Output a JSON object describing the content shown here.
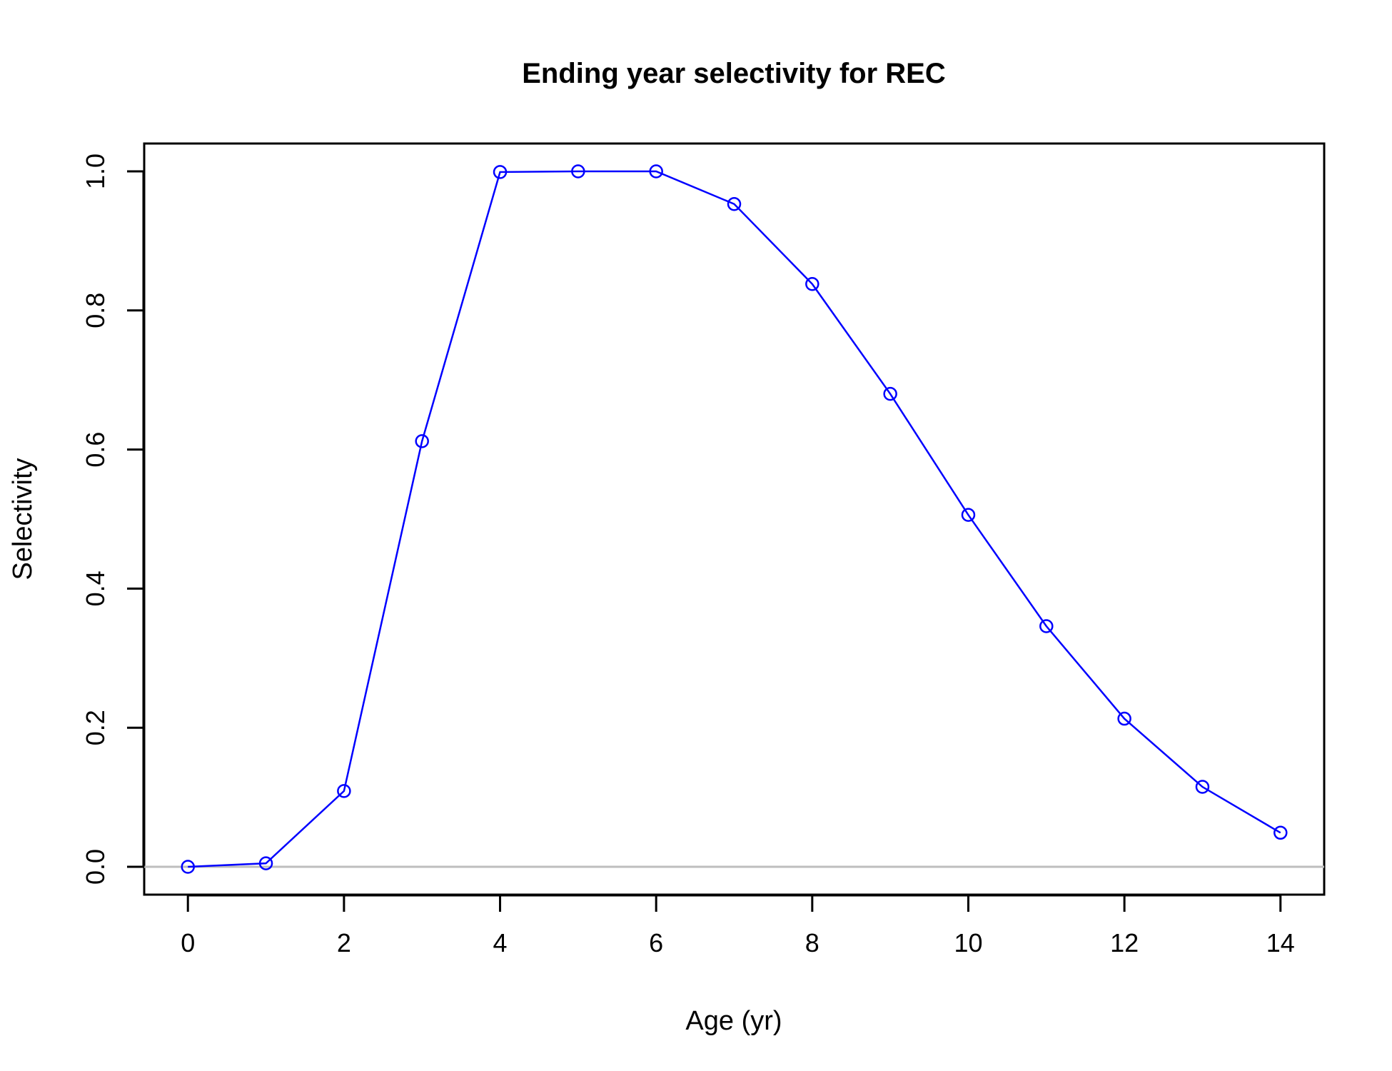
{
  "chart_data": {
    "type": "line",
    "title": "Ending year selectivity for REC",
    "xlabel": "Age (yr)",
    "ylabel": "Selectivity",
    "xlim": [
      -0.56,
      14.56
    ],
    "ylim": [
      -0.04,
      1.04
    ],
    "x_ticks": [
      0,
      2,
      4,
      6,
      8,
      10,
      12,
      14
    ],
    "y_ticks": [
      0.0,
      0.2,
      0.4,
      0.6,
      0.8,
      1.0
    ],
    "x_tick_labels": [
      "0",
      "2",
      "4",
      "6",
      "8",
      "10",
      "12",
      "14"
    ],
    "y_tick_labels": [
      "0.0",
      "0.2",
      "0.4",
      "0.6",
      "0.8",
      "1.0"
    ],
    "reference_line_y": 0,
    "reference_line_color": "#bebebe",
    "series": [
      {
        "color": "#0000ff",
        "marker": "open-circle",
        "x": [
          0,
          1,
          2,
          3,
          4,
          5,
          6,
          7,
          8,
          9,
          10,
          11,
          12,
          13,
          14
        ],
        "y": [
          0.0,
          0.005,
          0.109,
          0.612,
          0.999,
          1.0,
          1.0,
          0.953,
          0.838,
          0.68,
          0.506,
          0.346,
          0.213,
          0.115,
          0.049
        ]
      }
    ],
    "grid": false,
    "legend": "none"
  }
}
